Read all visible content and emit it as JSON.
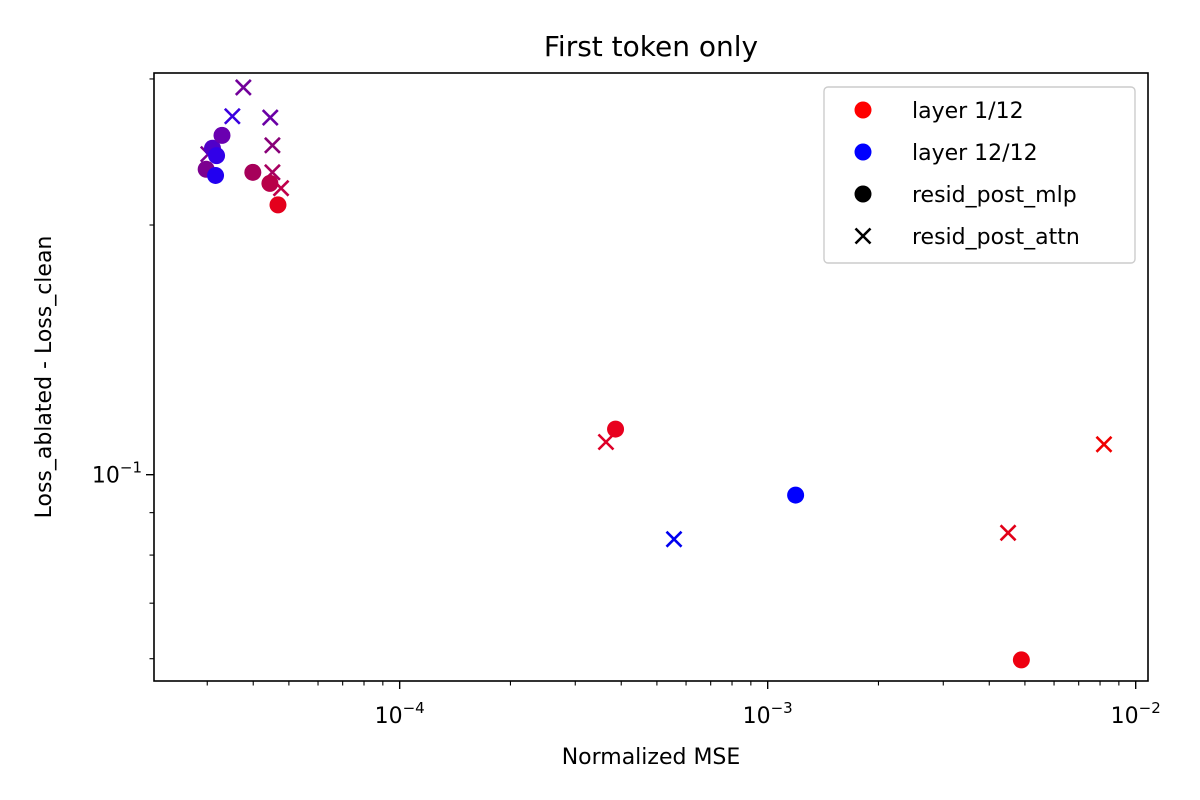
{
  "chart_data": {
    "type": "scatter",
    "title": "First token only",
    "xlabel": "Normalized MSE",
    "ylabel": "Loss_ablated - Loss_clean",
    "xscale": "log",
    "yscale": "log",
    "xlim": [
      2.15e-05,
      0.0108
    ],
    "ylim": [
      0.0564,
      0.305
    ],
    "x_ticks": [
      {
        "value": 0.0001,
        "base": "10",
        "exp": "−4"
      },
      {
        "value": 0.001,
        "base": "10",
        "exp": "−3"
      },
      {
        "value": 0.01,
        "base": "10",
        "exp": "−2"
      }
    ],
    "y_ticks": [
      {
        "value": 0.1,
        "base": "10",
        "exp": "−1"
      }
    ],
    "grid": false,
    "legend": {
      "position": "top-right",
      "entries": [
        {
          "label": "layer 1/12",
          "marker": "circle",
          "color": "#ff0000"
        },
        {
          "label": "layer 12/12",
          "marker": "circle",
          "color": "#0000ff"
        },
        {
          "label": "resid_post_mlp",
          "marker": "circle",
          "color": "#000000"
        },
        {
          "label": "resid_post_attn",
          "marker": "x",
          "color": "#000000"
        }
      ]
    },
    "points": [
      {
        "x": 3.02e-05,
        "y": 0.2435,
        "marker": "x",
        "color": "#7a0090"
      },
      {
        "x": 3.76e-05,
        "y": 0.293,
        "marker": "x",
        "color": "#72009a"
      },
      {
        "x": 3.51e-05,
        "y": 0.2705,
        "marker": "x",
        "color": "#3a00e0"
      },
      {
        "x": 4.45e-05,
        "y": 0.2695,
        "marker": "x",
        "color": "#6a00a5"
      },
      {
        "x": 4.51e-05,
        "y": 0.2495,
        "marker": "x",
        "color": "#880078"
      },
      {
        "x": 4.51e-05,
        "y": 0.2315,
        "marker": "x",
        "color": "#a80060"
      },
      {
        "x": 4.76e-05,
        "y": 0.2215,
        "marker": "x",
        "color": "#c0004a"
      },
      {
        "x": 0.0003635,
        "y": 0.1095,
        "marker": "x",
        "color": "#de0028"
      },
      {
        "x": 0.0005565,
        "y": 0.0836,
        "marker": "x",
        "color": "#0000f0"
      },
      {
        "x": 0.0045,
        "y": 0.0851,
        "marker": "x",
        "color": "#e20018"
      },
      {
        "x": 0.0082,
        "y": 0.1088,
        "marker": "x",
        "color": "#f00000"
      },
      {
        "x": 3.1e-05,
        "y": 0.2475,
        "marker": "circle",
        "color": "#5000c8"
      },
      {
        "x": 3.29e-05,
        "y": 0.2565,
        "marker": "circle",
        "color": "#6a00b0"
      },
      {
        "x": 3.18e-05,
        "y": 0.2425,
        "marker": "circle",
        "color": "#3200e8"
      },
      {
        "x": 2.98e-05,
        "y": 0.2335,
        "marker": "circle",
        "color": "#7c0090"
      },
      {
        "x": 3.16e-05,
        "y": 0.2295,
        "marker": "circle",
        "color": "#2200f0"
      },
      {
        "x": 3.99e-05,
        "y": 0.2315,
        "marker": "circle",
        "color": "#a6005a"
      },
      {
        "x": 4.44e-05,
        "y": 0.2245,
        "marker": "circle",
        "color": "#b80048"
      },
      {
        "x": 4.67e-05,
        "y": 0.2115,
        "marker": "circle",
        "color": "#e4001c"
      },
      {
        "x": 0.000386,
        "y": 0.1135,
        "marker": "circle",
        "color": "#e8001e"
      },
      {
        "x": 0.001191,
        "y": 0.0945,
        "marker": "circle",
        "color": "#0000ff"
      },
      {
        "x": 0.00489,
        "y": 0.0598,
        "marker": "circle",
        "color": "#ee0010"
      }
    ]
  }
}
